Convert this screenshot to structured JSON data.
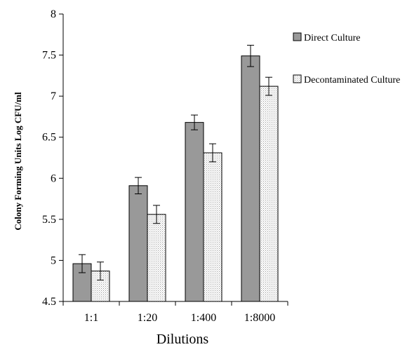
{
  "chart_data": {
    "type": "bar",
    "title": "",
    "xlabel": "Dilutions",
    "ylabel": "Colony Forming Units Log CFU/ml",
    "categories": [
      "1:1",
      "1:20",
      "1:400",
      "1:8000"
    ],
    "ylim": [
      4.5,
      8
    ],
    "yticks": [
      "4.5",
      "5",
      "5.5",
      "6",
      "6.5",
      "7",
      "7.5",
      "8"
    ],
    "legend_position": "right",
    "grid": false,
    "series": [
      {
        "name": "Direct Culture",
        "values": [
          4.96,
          5.91,
          6.68,
          7.49
        ],
        "errors": [
          0.11,
          0.1,
          0.09,
          0.13
        ],
        "color": "#999999"
      },
      {
        "name": "Decontaminated Culture",
        "values": [
          4.87,
          5.56,
          6.31,
          7.12
        ],
        "errors": [
          0.11,
          0.11,
          0.11,
          0.11
        ],
        "color": "#e6e6e6"
      }
    ]
  }
}
